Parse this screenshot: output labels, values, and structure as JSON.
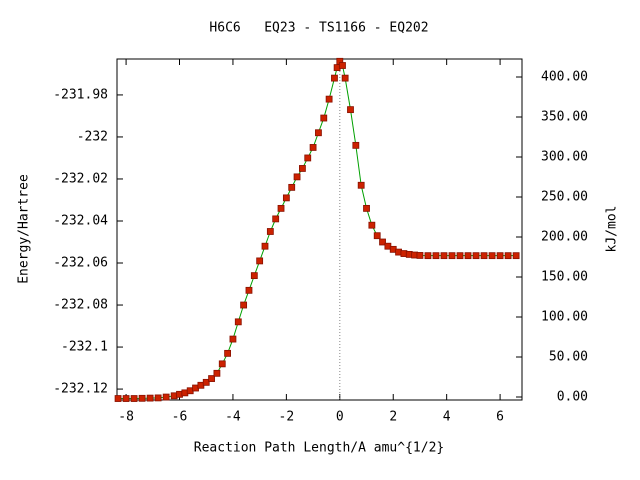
{
  "chart_data": {
    "type": "line",
    "title": "H6C6   EQ23 - TS1166 - EQ202",
    "xlabel": "Reaction Path Length/A amu^{1/2}",
    "ylabel": "Energy/Hartree",
    "y2label": "kJ/mol",
    "x": [
      -8.3,
      -8.0,
      -7.7,
      -7.4,
      -7.1,
      -6.8,
      -6.5,
      -6.2,
      -6.0,
      -5.8,
      -5.6,
      -5.4,
      -5.2,
      -5.0,
      -4.8,
      -4.6,
      -4.4,
      -4.2,
      -4.0,
      -3.8,
      -3.6,
      -3.4,
      -3.2,
      -3.0,
      -2.8,
      -2.6,
      -2.4,
      -2.2,
      -2.0,
      -1.8,
      -1.6,
      -1.4,
      -1.2,
      -1.0,
      -0.8,
      -0.6,
      -0.4,
      -0.2,
      -0.1,
      0.0,
      0.1,
      0.2,
      0.4,
      0.6,
      0.8,
      1.0,
      1.2,
      1.4,
      1.6,
      1.8,
      2.0,
      2.2,
      2.4,
      2.6,
      2.8,
      3.0,
      3.3,
      3.6,
      3.9,
      4.2,
      4.5,
      4.8,
      5.1,
      5.4,
      5.7,
      6.0,
      6.3,
      6.6
    ],
    "series": [
      {
        "color": "#00a000",
        "marker_color": "#cc2200",
        "values": [
          -232.1245,
          -232.1245,
          -232.1245,
          -232.1244,
          -232.1243,
          -232.1242,
          -232.1238,
          -232.1232,
          -232.1225,
          -232.1218,
          -232.1208,
          -232.1195,
          -232.1182,
          -232.1168,
          -232.115,
          -232.1125,
          -232.108,
          -232.103,
          -232.0962,
          -232.088,
          -232.08,
          -232.073,
          -232.066,
          -232.059,
          -232.052,
          -232.045,
          -232.039,
          -232.034,
          -232.029,
          -232.024,
          -232.019,
          -232.015,
          -232.01,
          -232.005,
          -231.998,
          -231.991,
          -231.982,
          -231.972,
          -231.967,
          -231.964,
          -231.966,
          -231.972,
          -231.987,
          -232.004,
          -232.023,
          -232.034,
          -232.042,
          -232.047,
          -232.05,
          -232.052,
          -232.0535,
          -232.0548,
          -232.0555,
          -232.0559,
          -232.0562,
          -232.0564,
          -232.0565,
          -232.0565,
          -232.0565,
          -232.0565,
          -232.0565,
          -232.0565,
          -232.0565,
          -232.0565,
          -232.0565,
          -232.0565,
          -232.0565,
          -232.0565
        ]
      }
    ],
    "vlines": [
      0
    ],
    "xlim": [
      -8.34,
      6.82
    ],
    "xticks": [
      -8,
      -6,
      -4,
      -2,
      0,
      2,
      4,
      6
    ],
    "ylim": [
      -232.1252,
      -231.9629
    ],
    "yticks": [
      -232.12,
      -232.1,
      -232.08,
      -232.06,
      -232.04,
      -232.02,
      -232.0,
      -231.98
    ],
    "y2lim": [
      -3.75,
      422.5
    ],
    "y2ticks": [
      {
        "value": 0,
        "label": "0.00"
      },
      {
        "value": 50,
        "label": "50.00"
      },
      {
        "value": 100,
        "label": "100.00"
      },
      {
        "value": 150,
        "label": "150.00"
      },
      {
        "value": 200,
        "label": "200.00"
      },
      {
        "value": 250,
        "label": "250.00"
      },
      {
        "value": 300,
        "label": "300.00"
      },
      {
        "value": 350,
        "label": "350.00"
      },
      {
        "value": 400,
        "label": "400.00"
      }
    ]
  }
}
